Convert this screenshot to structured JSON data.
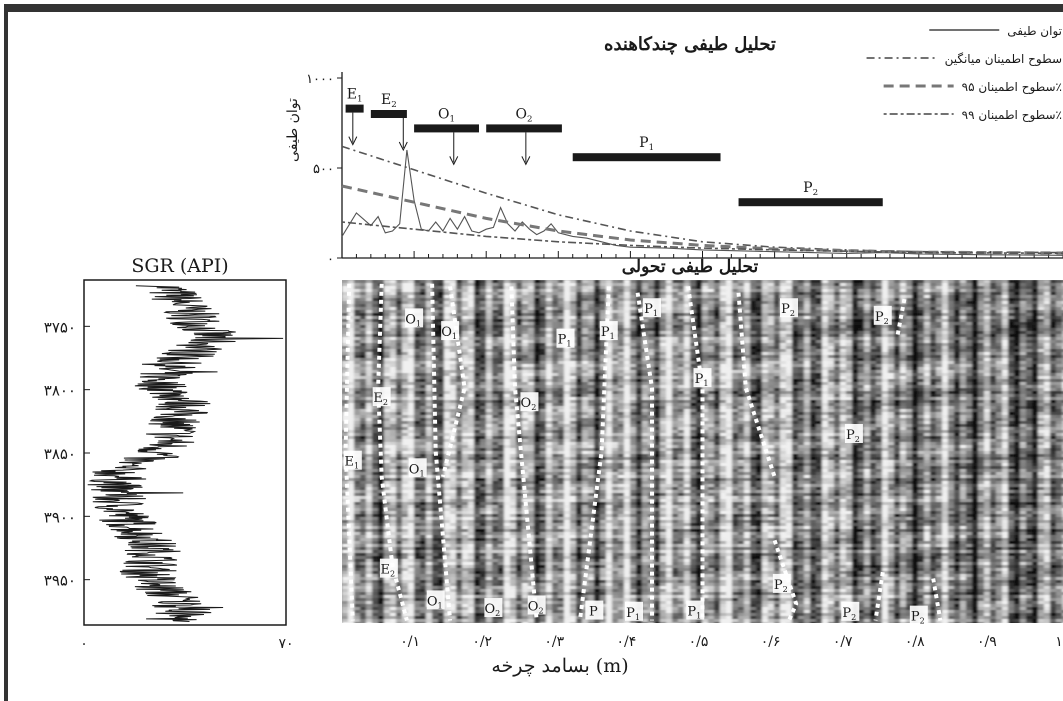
{
  "colors": {
    "ink": "#1a1a1a",
    "paper": "#ffffff",
    "frame": "#333333"
  },
  "chart_data": [
    {
      "type": "line",
      "title": "تحلیل طیفی چندکاهنده",
      "ylabel": "توان طیفی",
      "ylim": [
        0,
        1000
      ],
      "yticks": [
        "۰",
        "۵۰۰",
        "۱۰۰۰"
      ],
      "xlim": [
        0,
        1.0
      ],
      "legend_position": "top-right",
      "series": [
        {
          "name": "توان طیفی",
          "style": "solid",
          "x": [
            0.0,
            0.02,
            0.04,
            0.05,
            0.06,
            0.07,
            0.08,
            0.09,
            0.1,
            0.11,
            0.12,
            0.13,
            0.14,
            0.15,
            0.16,
            0.17,
            0.18,
            0.19,
            0.2,
            0.21,
            0.22,
            0.23,
            0.24,
            0.25,
            0.26,
            0.27,
            0.28,
            0.29,
            0.3,
            0.32,
            0.34,
            0.36,
            0.38,
            0.4,
            0.45,
            0.5,
            0.55,
            0.6,
            0.65,
            0.7,
            0.75,
            0.8,
            0.9,
            1.0
          ],
          "y": [
            120,
            250,
            180,
            230,
            140,
            150,
            190,
            600,
            320,
            160,
            150,
            200,
            150,
            220,
            160,
            230,
            150,
            140,
            160,
            170,
            280,
            190,
            150,
            200,
            160,
            130,
            150,
            190,
            140,
            120,
            110,
            90,
            70,
            60,
            55,
            45,
            40,
            35,
            30,
            25,
            30,
            22,
            18,
            15
          ]
        },
        {
          "name": "سطوح اطمینان میانگین",
          "style": "dashdot",
          "x": [
            0.0,
            0.1,
            0.2,
            0.3,
            0.4,
            0.5,
            0.6,
            0.7,
            0.8,
            1.0
          ],
          "y": [
            620,
            490,
            360,
            240,
            150,
            90,
            60,
            45,
            35,
            30
          ]
        },
        {
          "name": "سطوح اطمینان ۹۵٪",
          "style": "dashed",
          "x": [
            0.0,
            0.1,
            0.2,
            0.3,
            0.4,
            0.5,
            0.6,
            0.7,
            0.8,
            1.0
          ],
          "y": [
            400,
            310,
            220,
            150,
            100,
            70,
            50,
            40,
            32,
            28
          ]
        },
        {
          "name": "سطوح اطمینان ۹۹٪",
          "style": "dotdash",
          "x": [
            0.0,
            0.1,
            0.2,
            0.3,
            0.4,
            0.5,
            0.6,
            0.7,
            0.8,
            1.0
          ],
          "y": [
            200,
            160,
            120,
            90,
            70,
            55,
            45,
            38,
            30,
            26
          ]
        }
      ],
      "bands": [
        {
          "label": "E",
          "sub": "1",
          "x0": 0.005,
          "x1": 0.03,
          "y": 830,
          "arrow_x": 0.015
        },
        {
          "label": "E",
          "sub": "2",
          "x0": 0.04,
          "x1": 0.09,
          "y": 800,
          "arrow_x": 0.085
        },
        {
          "label": "O",
          "sub": "1",
          "x0": 0.1,
          "x1": 0.19,
          "y": 720,
          "arrow_x": 0.155
        },
        {
          "label": "O",
          "sub": "2",
          "x0": 0.2,
          "x1": 0.305,
          "y": 720,
          "arrow_x": 0.255
        },
        {
          "label": "P",
          "sub": "1",
          "x0": 0.32,
          "x1": 0.525,
          "y": 560,
          "arrow_x": null
        },
        {
          "label": "P",
          "sub": "2",
          "x0": 0.55,
          "x1": 0.75,
          "y": 310,
          "arrow_x": null
        }
      ]
    },
    {
      "type": "line",
      "title": "SGR (API)",
      "xlim": [
        0,
        70
      ],
      "xticks": [
        "۰",
        "۷۰"
      ],
      "ylim": [
        3715,
        3985
      ],
      "yticks": [
        {
          "value": 3750,
          "label": "۳۷۵۰"
        },
        {
          "value": 3800,
          "label": "۳۸۰۰"
        },
        {
          "value": 3850,
          "label": "۳۸۵۰"
        },
        {
          "value": 3900,
          "label": "۳۹۰۰"
        },
        {
          "value": 3950,
          "label": "۳۹۵۰"
        }
      ],
      "series": [
        {
          "name": "",
          "seed": 7,
          "depth_start": 3718,
          "depth_end": 3983,
          "anchors": [
            [
              3718,
              28
            ],
            [
              3735,
              35
            ],
            [
              3748,
              40
            ],
            [
              3760,
              45
            ],
            [
              3770,
              38
            ],
            [
              3780,
              30
            ],
            [
              3795,
              26
            ],
            [
              3810,
              35
            ],
            [
              3825,
              32
            ],
            [
              3840,
              30
            ],
            [
              3852,
              25
            ],
            [
              3860,
              12
            ],
            [
              3870,
              12
            ],
            [
              3880,
              10
            ],
            [
              3890,
              12
            ],
            [
              3900,
              14
            ],
            [
              3910,
              18
            ],
            [
              3920,
              22
            ],
            [
              3930,
              25
            ],
            [
              3945,
              22
            ],
            [
              3955,
              25
            ],
            [
              3965,
              32
            ],
            [
              3975,
              35
            ],
            [
              3983,
              30
            ]
          ],
          "amplitude": 10
        }
      ]
    },
    {
      "type": "heatmap",
      "title": "تحلیل طیفی تحولی",
      "xlabel": "بسامد چرخه (m)",
      "xlim": [
        0,
        1.0
      ],
      "xticks": [
        {
          "value": 0.1,
          "label": "۰/۱"
        },
        {
          "value": 0.2,
          "label": "۰/۲"
        },
        {
          "value": 0.3,
          "label": "۰/۳"
        },
        {
          "value": 0.4,
          "label": "۰/۴"
        },
        {
          "value": 0.5,
          "label": "۰/۵"
        },
        {
          "value": 0.6,
          "label": "۰/۶"
        },
        {
          "value": 0.7,
          "label": "۰/۷"
        },
        {
          "value": 0.8,
          "label": "۰/۸"
        },
        {
          "value": 0.9,
          "label": "۰/۹"
        },
        {
          "value": 1.0,
          "label": "۱"
        }
      ],
      "ylim": [
        3715,
        3985
      ],
      "colormap": "grayscale",
      "traces": [
        {
          "points": [
            [
              0.055,
              3718
            ],
            [
              0.05,
              3800
            ],
            [
              0.055,
              3870
            ],
            [
              0.07,
              3940
            ],
            [
              0.09,
              3983
            ]
          ]
        },
        {
          "points": [
            [
              0.01,
              3718
            ],
            [
              0.005,
              3850
            ],
            [
              0.015,
              3983
            ]
          ]
        },
        {
          "points": [
            [
              0.125,
              3718
            ],
            [
              0.13,
              3850
            ],
            [
              0.15,
              3983
            ]
          ]
        },
        {
          "points": [
            [
              0.15,
              3720
            ],
            [
              0.17,
              3800
            ],
            [
              0.14,
              3870
            ]
          ]
        },
        {
          "points": [
            [
              0.235,
              3720
            ],
            [
              0.24,
              3800
            ],
            [
              0.27,
              3983
            ]
          ]
        },
        {
          "points": [
            [
              0.37,
              3720
            ],
            [
              0.36,
              3850
            ],
            [
              0.33,
              3983
            ]
          ]
        },
        {
          "points": [
            [
              0.41,
              3725
            ],
            [
              0.43,
              3800
            ],
            [
              0.43,
              3983
            ]
          ]
        },
        {
          "points": [
            [
              0.48,
              3720
            ],
            [
              0.5,
              3800
            ],
            [
              0.5,
              3983
            ]
          ]
        },
        {
          "points": [
            [
              0.55,
              3725
            ],
            [
              0.56,
              3800
            ],
            [
              0.6,
              3870
            ]
          ]
        },
        {
          "points": [
            [
              0.6,
              3920
            ],
            [
              0.63,
              3970
            ],
            [
              0.62,
              3983
            ]
          ]
        },
        {
          "points": [
            [
              0.78,
              3730
            ],
            [
              0.77,
              3760
            ]
          ]
        },
        {
          "points": [
            [
              0.75,
              3945
            ],
            [
              0.74,
              3983
            ]
          ]
        },
        {
          "points": [
            [
              0.82,
              3950
            ],
            [
              0.83,
              3983
            ]
          ]
        }
      ],
      "annotations": [
        {
          "label": "O",
          "sub": "1",
          "x": 0.1,
          "y": 3746
        },
        {
          "label": "O",
          "sub": "1",
          "x": 0.15,
          "y": 3756
        },
        {
          "label": "P",
          "sub": "1",
          "x": 0.43,
          "y": 3738
        },
        {
          "label": "P",
          "sub": "2",
          "x": 0.62,
          "y": 3738
        },
        {
          "label": "P",
          "sub": "2",
          "x": 0.75,
          "y": 3744
        },
        {
          "label": "P",
          "sub": "1",
          "x": 0.31,
          "y": 3762
        },
        {
          "label": "P",
          "sub": "1",
          "x": 0.37,
          "y": 3756
        },
        {
          "label": "P",
          "sub": "1",
          "x": 0.5,
          "y": 3793
        },
        {
          "label": "E",
          "sub": "2",
          "x": 0.055,
          "y": 3808
        },
        {
          "label": "O",
          "sub": "2",
          "x": 0.26,
          "y": 3812
        },
        {
          "label": "P",
          "sub": "2",
          "x": 0.71,
          "y": 3837
        },
        {
          "label": "E",
          "sub": "1",
          "x": 0.015,
          "y": 3858
        },
        {
          "label": "O",
          "sub": "1",
          "x": 0.105,
          "y": 3864
        },
        {
          "label": "E",
          "sub": "2",
          "x": 0.065,
          "y": 3943
        },
        {
          "label": "O",
          "sub": "1",
          "x": 0.13,
          "y": 3968
        },
        {
          "label": "O",
          "sub": "2",
          "x": 0.21,
          "y": 3974
        },
        {
          "label": "O",
          "sub": "2",
          "x": 0.27,
          "y": 3972
        },
        {
          "label": "P",
          "sub": "",
          "x": 0.35,
          "y": 3976
        },
        {
          "label": "P",
          "sub": "1",
          "x": 0.405,
          "y": 3977
        },
        {
          "label": "P",
          "sub": "1",
          "x": 0.49,
          "y": 3976
        },
        {
          "label": "P",
          "sub": "2",
          "x": 0.61,
          "y": 3955
        },
        {
          "label": "P",
          "sub": "2",
          "x": 0.705,
          "y": 3977
        },
        {
          "label": "P",
          "sub": "2",
          "x": 0.8,
          "y": 3980
        }
      ]
    }
  ]
}
